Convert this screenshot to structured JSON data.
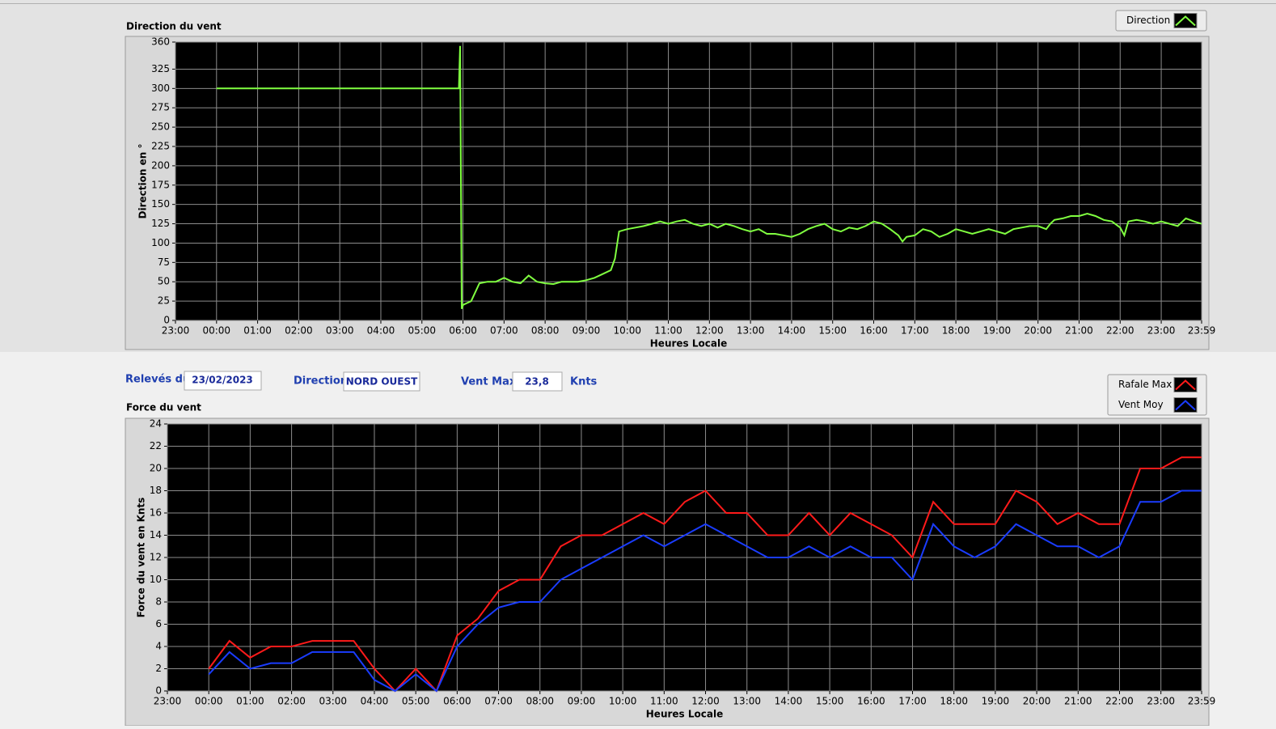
{
  "chart_data": [
    {
      "type": "line",
      "title": "Direction du vent",
      "ylabel": "Direction en °",
      "xlabel": "Heures Locale",
      "grid": true,
      "background": "#000000",
      "ylim": [
        0,
        360
      ],
      "yticks": [
        0,
        25,
        50,
        75,
        100,
        125,
        150,
        175,
        200,
        225,
        250,
        275,
        300,
        325,
        360
      ],
      "xlim": [
        -1,
        23.983
      ],
      "xticks": [
        {
          "value": -1,
          "label": "23:00"
        },
        {
          "value": 0,
          "label": "00:00"
        },
        {
          "value": 1,
          "label": "01:00"
        },
        {
          "value": 2,
          "label": "02:00"
        },
        {
          "value": 3,
          "label": "03:00"
        },
        {
          "value": 4,
          "label": "04:00"
        },
        {
          "value": 5,
          "label": "05:00"
        },
        {
          "value": 6,
          "label": "06:00"
        },
        {
          "value": 7,
          "label": "07:00"
        },
        {
          "value": 8,
          "label": "08:00"
        },
        {
          "value": 9,
          "label": "09:00"
        },
        {
          "value": 10,
          "label": "10:00"
        },
        {
          "value": 11,
          "label": "11:00"
        },
        {
          "value": 12,
          "label": "12:00"
        },
        {
          "value": 13,
          "label": "13:00"
        },
        {
          "value": 14,
          "label": "14:00"
        },
        {
          "value": 15,
          "label": "15:00"
        },
        {
          "value": 16,
          "label": "16:00"
        },
        {
          "value": 17,
          "label": "17:00"
        },
        {
          "value": 18,
          "label": "18:00"
        },
        {
          "value": 19,
          "label": "19:00"
        },
        {
          "value": 20,
          "label": "20:00"
        },
        {
          "value": 21,
          "label": "21:00"
        },
        {
          "value": 22,
          "label": "22:00"
        },
        {
          "value": 23,
          "label": "23:00"
        },
        {
          "value": 23.983,
          "label": "23:59"
        }
      ],
      "x": [
        0,
        5.9,
        5.93,
        5.97,
        6.0,
        6.2,
        6.4,
        6.6,
        6.8,
        7.0,
        7.2,
        7.4,
        7.6,
        7.8,
        8.0,
        8.2,
        8.4,
        8.6,
        8.8,
        9.0,
        9.2,
        9.4,
        9.6,
        9.7,
        9.8,
        10.0,
        10.2,
        10.4,
        10.6,
        10.8,
        11.0,
        11.2,
        11.4,
        11.6,
        11.8,
        12.0,
        12.2,
        12.4,
        12.6,
        12.8,
        13.0,
        13.2,
        13.4,
        13.6,
        13.8,
        14.0,
        14.2,
        14.4,
        14.6,
        14.8,
        15.0,
        15.2,
        15.4,
        15.6,
        15.8,
        16.0,
        16.2,
        16.4,
        16.6,
        16.7,
        16.8,
        17.0,
        17.2,
        17.4,
        17.6,
        17.8,
        18.0,
        18.2,
        18.4,
        18.6,
        18.8,
        19.0,
        19.2,
        19.4,
        19.6,
        19.8,
        20.0,
        20.2,
        20.3,
        20.4,
        20.6,
        20.8,
        21.0,
        21.2,
        21.4,
        21.6,
        21.8,
        22.0,
        22.1,
        22.2,
        22.4,
        22.6,
        22.8,
        23.0,
        23.2,
        23.4,
        23.6,
        23.8,
        23.98
      ],
      "series": [
        {
          "name": "Direction",
          "color": "#80ff40",
          "values": [
            300,
            300,
            355,
            15,
            20,
            25,
            48,
            50,
            50,
            55,
            50,
            48,
            58,
            50,
            48,
            47,
            50,
            50,
            50,
            52,
            55,
            60,
            65,
            80,
            115,
            118,
            120,
            122,
            125,
            128,
            125,
            128,
            130,
            125,
            122,
            125,
            120,
            125,
            122,
            118,
            115,
            118,
            112,
            112,
            110,
            108,
            112,
            118,
            122,
            125,
            118,
            115,
            120,
            118,
            122,
            128,
            125,
            118,
            110,
            102,
            108,
            110,
            118,
            115,
            108,
            112,
            118,
            115,
            112,
            115,
            118,
            115,
            112,
            118,
            120,
            122,
            122,
            118,
            125,
            130,
            132,
            135,
            135,
            138,
            135,
            130,
            128,
            120,
            110,
            128,
            130,
            128,
            125,
            128,
            125,
            122,
            132,
            128,
            125
          ]
        }
      ]
    },
    {
      "type": "line",
      "title": "Force du vent",
      "ylabel": "Force du vent en Knts",
      "xlabel": "Heures Locale",
      "grid": true,
      "background": "#000000",
      "ylim": [
        0,
        24
      ],
      "yticks": [
        0,
        2,
        4,
        6,
        8,
        10,
        12,
        14,
        16,
        18,
        20,
        22,
        24
      ],
      "xlim": [
        -1,
        23.983
      ],
      "xticks": [
        {
          "value": -1,
          "label": "23:00"
        },
        {
          "value": 0,
          "label": "00:00"
        },
        {
          "value": 1,
          "label": "01:00"
        },
        {
          "value": 2,
          "label": "02:00"
        },
        {
          "value": 3,
          "label": "03:00"
        },
        {
          "value": 4,
          "label": "04:00"
        },
        {
          "value": 5,
          "label": "05:00"
        },
        {
          "value": 6,
          "label": "06:00"
        },
        {
          "value": 7,
          "label": "07:00"
        },
        {
          "value": 8,
          "label": "08:00"
        },
        {
          "value": 9,
          "label": "09:00"
        },
        {
          "value": 10,
          "label": "10:00"
        },
        {
          "value": 11,
          "label": "11:00"
        },
        {
          "value": 12,
          "label": "12:00"
        },
        {
          "value": 13,
          "label": "13:00"
        },
        {
          "value": 14,
          "label": "14:00"
        },
        {
          "value": 15,
          "label": "15:00"
        },
        {
          "value": 16,
          "label": "16:00"
        },
        {
          "value": 17,
          "label": "17:00"
        },
        {
          "value": 18,
          "label": "18:00"
        },
        {
          "value": 19,
          "label": "19:00"
        },
        {
          "value": 20,
          "label": "20:00"
        },
        {
          "value": 21,
          "label": "21:00"
        },
        {
          "value": 22,
          "label": "22:00"
        },
        {
          "value": 23,
          "label": "23:00"
        },
        {
          "value": 23.983,
          "label": "23:59"
        }
      ],
      "x": [
        0,
        0.5,
        1,
        1.5,
        2,
        2.5,
        3,
        3.5,
        4,
        4.5,
        5,
        5.5,
        6,
        6.5,
        7,
        7.5,
        8,
        8.5,
        9,
        9.5,
        10,
        10.5,
        11,
        11.5,
        12,
        12.5,
        13,
        13.5,
        14,
        14.5,
        15,
        15.5,
        16,
        16.5,
        17,
        17.5,
        18,
        18.5,
        19,
        19.5,
        20,
        20.5,
        21,
        21.5,
        22,
        22.5,
        23,
        23.5,
        23.98
      ],
      "series": [
        {
          "name": "Rafale Max",
          "color": "#ff1a1a",
          "values": [
            2,
            4.5,
            3,
            4,
            4,
            4.5,
            4.5,
            4.5,
            2,
            0,
            2,
            0,
            5,
            6.5,
            9,
            10,
            10,
            13,
            14,
            14,
            15,
            16,
            15,
            17,
            18,
            16,
            16,
            14,
            14,
            16,
            14,
            16,
            15,
            14,
            12,
            17,
            15,
            15,
            15,
            18,
            17,
            15,
            16,
            15,
            15,
            20,
            20,
            21,
            21
          ]
        },
        {
          "name": "Vent Moy",
          "color": "#1a3cff",
          "values": [
            1.5,
            3.5,
            2,
            2.5,
            2.5,
            3.5,
            3.5,
            3.5,
            1,
            0,
            1.5,
            0,
            4,
            6,
            7.5,
            8,
            8,
            10,
            11,
            12,
            13,
            14,
            13,
            14,
            15,
            14,
            13,
            12,
            12,
            13,
            12,
            13,
            12,
            12,
            10,
            15,
            13,
            12,
            13,
            15,
            14,
            13,
            13,
            12,
            13,
            17,
            17,
            18,
            18
          ]
        }
      ]
    }
  ],
  "form": {
    "date_label": "Relevés du",
    "date": "23/02/2023",
    "direction_label": "Direction",
    "direction": "NORD OUEST",
    "max_label": "Vent Max",
    "max_value": "23,8",
    "max_unit": "Knts"
  }
}
